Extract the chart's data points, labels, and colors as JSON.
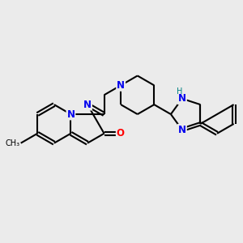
{
  "background_color": "#ebebeb",
  "bond_color": "#000000",
  "N_color": "#0000ee",
  "O_color": "#ff0000",
  "H_color": "#008080",
  "line_width": 1.5,
  "font_size_N": 8.5,
  "font_size_O": 8.5,
  "font_size_H": 7.0,
  "font_size_CH3": 7.0,
  "figsize": [
    3.0,
    3.0
  ],
  "dpi": 100,
  "xlim": [
    0,
    10
  ],
  "ylim": [
    3.5,
    9.5
  ]
}
